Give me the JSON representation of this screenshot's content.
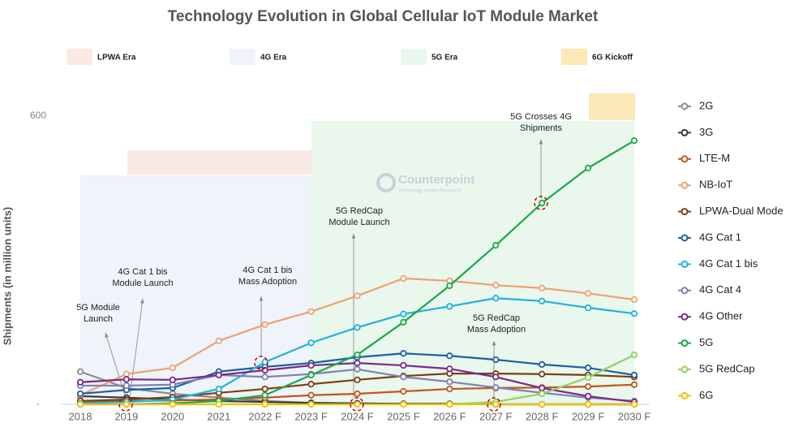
{
  "chart_data": {
    "type": "line",
    "title": "Technology Evolution in Global Cellular IoT Module Market",
    "y_label": "Shipments (in million units)",
    "watermark": {
      "name": "Counterpoint",
      "tagline": "Technology Market Research"
    },
    "categories": [
      "2018",
      "2019",
      "2020",
      "2021",
      "2022 F",
      "2023 F",
      "2024 F",
      "2025 F",
      "2026 F",
      "2027 F",
      "2028 F",
      "2029 F",
      "2030 F"
    ],
    "ylim": [
      0,
      600
    ],
    "yticks": [
      {
        "value": 0,
        "label": "-"
      },
      600
    ],
    "eras": [
      {
        "label": "LPWA Era",
        "color": "#fbe9e3"
      },
      {
        "label": "4G Era",
        "color": "#eef4fa"
      },
      {
        "label": "5G Era",
        "color": "#e9f7ec"
      },
      {
        "label": "6G Kickoff",
        "color": "#fce9b8"
      }
    ],
    "annotations": [
      {
        "lines": [
          "5G Module",
          "Launch"
        ]
      },
      {
        "lines": [
          "4G Cat 1 bis",
          "Module Launch"
        ]
      },
      {
        "lines": [
          "4G Cat 1 bis",
          "Mass Adoption"
        ]
      },
      {
        "lines": [
          "5G RedCap",
          "Module Launch"
        ]
      },
      {
        "lines": [
          "5G RedCap",
          "Mass Adoption"
        ]
      },
      {
        "lines": [
          "5G Crosses 4G",
          "Shipments"
        ]
      }
    ],
    "series": [
      {
        "name": "2G",
        "color": "#8c8c8c",
        "values": [
          68,
          34,
          22,
          14,
          7,
          3,
          2,
          1,
          1,
          0,
          0,
          0,
          0
        ]
      },
      {
        "name": "3G",
        "color": "#3a3a3a",
        "values": [
          17,
          14,
          10,
          7,
          5,
          3,
          2,
          1,
          1,
          0,
          0,
          0,
          0
        ]
      },
      {
        "name": "LTE-M",
        "color": "#c0561e",
        "values": [
          3,
          7,
          8,
          10,
          14,
          19,
          22,
          27,
          32,
          34,
          35,
          37,
          41
        ]
      },
      {
        "name": "NB-IoT",
        "color": "#f0a070",
        "values": [
          19,
          63,
          76,
          132,
          166,
          193,
          226,
          262,
          257,
          248,
          242,
          231,
          218
        ]
      },
      {
        "name": "LPWA-Dual Mode",
        "color": "#7b3f12",
        "values": [
          7,
          10,
          15,
          24,
          32,
          42,
          51,
          59,
          64,
          64,
          63,
          61,
          57
        ]
      },
      {
        "name": "4G Cat 1",
        "color": "#1f5fa0",
        "values": [
          22,
          30,
          34,
          68,
          78,
          86,
          98,
          106,
          101,
          93,
          83,
          76,
          61
        ]
      },
      {
        "name": "4G Cat 1 bis",
        "color": "#20b0e0",
        "values": [
          2,
          5,
          10,
          32,
          88,
          128,
          160,
          188,
          204,
          221,
          215,
          201,
          189
        ]
      },
      {
        "name": "4G Cat 4",
        "color": "#8080b0",
        "values": [
          39,
          39,
          41,
          61,
          57,
          63,
          73,
          57,
          47,
          35,
          24,
          14,
          7
        ]
      },
      {
        "name": "4G Other",
        "color": "#7a2a8a",
        "values": [
          46,
          52,
          51,
          61,
          71,
          81,
          86,
          81,
          74,
          57,
          34,
          17,
          5
        ]
      },
      {
        "name": "5G",
        "color": "#1aa84a",
        "values": [
          0,
          0,
          2,
          7,
          19,
          61,
          103,
          171,
          247,
          331,
          419,
          492,
          549
        ]
      },
      {
        "name": "5G RedCap",
        "color": "#90d060",
        "values": [
          null,
          null,
          null,
          null,
          null,
          null,
          null,
          null,
          0,
          5,
          22,
          56,
          103
        ]
      },
      {
        "name": "6G",
        "color": "#f0c000",
        "values": [
          0,
          0,
          0,
          0,
          0,
          0,
          0,
          0,
          0,
          0,
          0,
          0,
          0
        ]
      }
    ]
  }
}
